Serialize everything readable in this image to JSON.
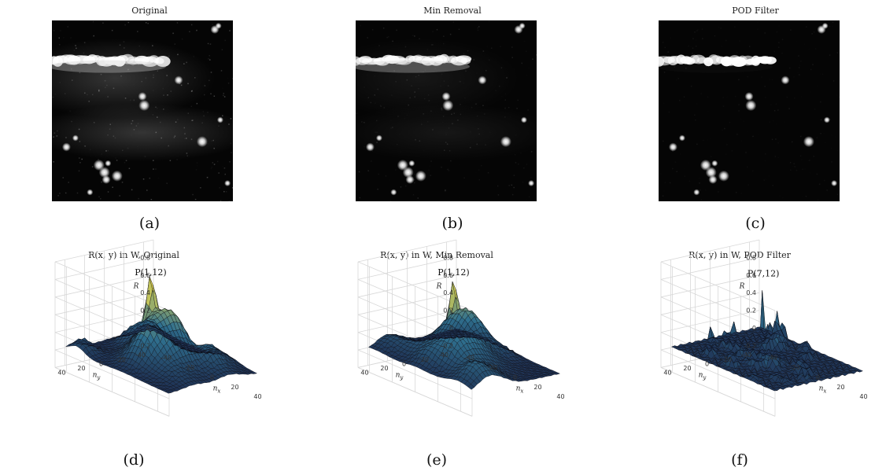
{
  "panels_top": [
    {
      "id": "a",
      "title": "Original",
      "sublabel": "(a)",
      "streak": 1.0,
      "haze": 0.32,
      "noise": 0.45
    },
    {
      "id": "b",
      "title": "Min Removal",
      "sublabel": "(b)",
      "streak": 0.95,
      "haze": 0.12,
      "noise": 0.2
    },
    {
      "id": "c",
      "title": "POD Filter",
      "sublabel": "(c)",
      "streak": 0.08,
      "haze": 0.0,
      "noise": 0.12
    }
  ],
  "panels_bottom": [
    {
      "id": "d",
      "title": "R(x, y) in W, Original",
      "sublabel": "(d)",
      "peak_label": "P(1,12)"
    },
    {
      "id": "e",
      "title": "R(x, y) in W, Min Removal",
      "sublabel": "(e)",
      "peak_label": "P(1,12)"
    },
    {
      "id": "f",
      "title": "R(x, y) in W, POD Filter",
      "sublabel": "(f)",
      "peak_label": "P(7,12)"
    }
  ],
  "chart_data": [
    {
      "type": "surface",
      "title": "R(x, y) in W, Original",
      "xlabel": "n_x",
      "ylabel": "n_y",
      "zlabel": "R",
      "x_ticks": [
        -40,
        -20,
        0,
        20,
        40
      ],
      "y_ticks": [
        40,
        20,
        0,
        -20,
        -40
      ],
      "z_ticks": [
        -0.2,
        0,
        0.2,
        0.4,
        0.6,
        0.8
      ],
      "zlim": [
        -0.2,
        1.0
      ],
      "peak": {
        "label": "P(1,12)",
        "n_x": 1,
        "n_y": 12,
        "R": 0.98
      },
      "background_level": 0.02,
      "profile": "broad"
    },
    {
      "type": "surface",
      "title": "R(x, y) in W, Min Removal",
      "xlabel": "n_x",
      "ylabel": "n_y",
      "zlabel": "R",
      "x_ticks": [
        -40,
        -20,
        0,
        20,
        40
      ],
      "y_ticks": [
        40,
        20,
        0,
        -20,
        -40
      ],
      "z_ticks": [
        -0.2,
        0,
        0.2,
        0.4,
        0.6,
        0.8
      ],
      "zlim": [
        -0.2,
        1.0
      ],
      "peak": {
        "label": "P(1,12)",
        "n_x": 1,
        "n_y": 12,
        "R": 0.98
      },
      "background_level": 0.02,
      "profile": "broad"
    },
    {
      "type": "surface",
      "title": "R(x, y) in W, POD Filter",
      "xlabel": "n_x",
      "ylabel": "n_y",
      "zlabel": "R",
      "x_ticks": [
        -40,
        -20,
        0,
        20,
        40
      ],
      "y_ticks": [
        40,
        20,
        0,
        -20,
        -40
      ],
      "z_ticks": [
        -0.2,
        0,
        0.2,
        0.4,
        0.6,
        0.8
      ],
      "zlim": [
        -0.2,
        1.0
      ],
      "peak": {
        "label": "P(7,12)",
        "n_x": 7,
        "n_y": 12,
        "R": 1.0
      },
      "background_level": 0.05,
      "profile": "sharp"
    }
  ],
  "colors": {
    "surface_low": "#140a2e",
    "surface_mid": "#2f6f8e",
    "surface_high": "#f2e04a",
    "grid": "#d8d8d8",
    "particle": "#ffffff"
  }
}
